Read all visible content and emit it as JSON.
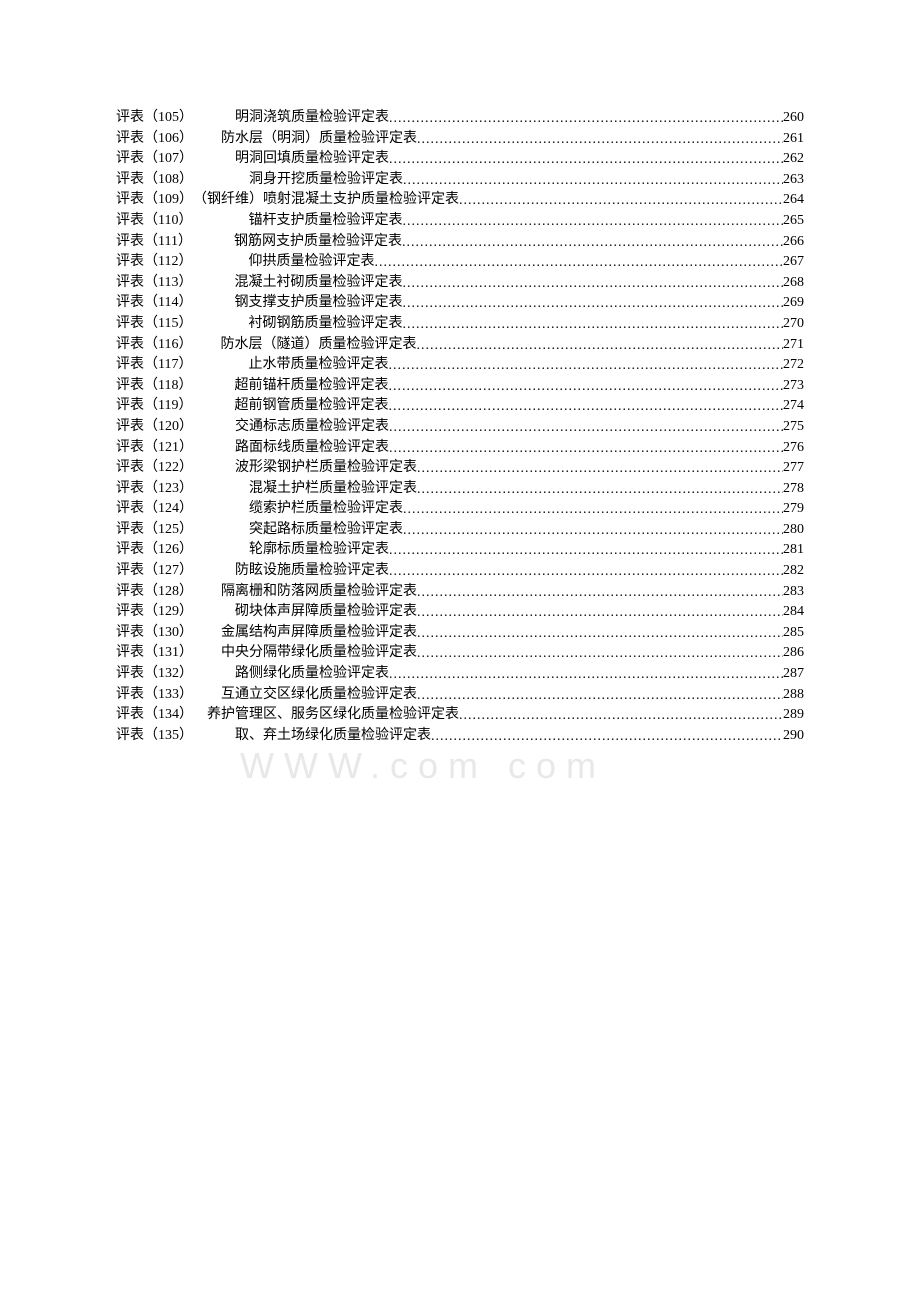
{
  "watermark": "WWW.com com",
  "entries": [
    {
      "label": "评表（105）",
      "spacer": "　　　",
      "title": "明洞浇筑质量检验评定表",
      "page": "260"
    },
    {
      "label": "评表（106）",
      "spacer": "　　",
      "title": "防水层（明洞）质量检验评定表",
      "page": "261"
    },
    {
      "label": "评表（107）",
      "spacer": "　　　",
      "title": "明洞回填质量检验评定表",
      "page": "262"
    },
    {
      "label": "评表（108）",
      "spacer": "　　　　",
      "title": "洞身开挖质量检验评定表",
      "page": "263"
    },
    {
      "label": "评表（109）",
      "spacer": "",
      "title": "（钢纤维）喷射混凝土支护质量检验评定表",
      "page": "264"
    },
    {
      "label": "评表（110）",
      "spacer": "　　　　",
      "title": "锚杆支护质量检验评定表",
      "page": "265"
    },
    {
      "label": "评表（111）",
      "spacer": "　　　",
      "title": "钢筋网支护质量检验评定表",
      "page": "266"
    },
    {
      "label": "评表（112）",
      "spacer": "　　　　",
      "title": "仰拱质量检验评定表",
      "page": "267"
    },
    {
      "label": "评表（113）",
      "spacer": "　　　",
      "title": "混凝土衬砌质量检验评定表",
      "page": "268"
    },
    {
      "label": "评表（114）",
      "spacer": "　　　",
      "title": "钢支撑支护质量检验评定表",
      "page": "269"
    },
    {
      "label": "评表（115）",
      "spacer": "　　　　",
      "title": "衬砌钢筋质量检验评定表",
      "page": "270"
    },
    {
      "label": "评表（116）",
      "spacer": "　　",
      "title": "防水层（隧道）质量检验评定表",
      "page": "271"
    },
    {
      "label": "评表（117）",
      "spacer": "　　　　",
      "title": "止水带质量检验评定表",
      "page": "272"
    },
    {
      "label": "评表（118）",
      "spacer": "　　　",
      "title": "超前锚杆质量检验评定表",
      "page": "273"
    },
    {
      "label": "评表（119）",
      "spacer": "　　　",
      "title": "超前钢管质量检验评定表",
      "page": "274"
    },
    {
      "label": "评表（120）",
      "spacer": "　　　",
      "title": "交通标志质量检验评定表",
      "page": "275"
    },
    {
      "label": "评表（121）",
      "spacer": "　　　",
      "title": "路面标线质量检验评定表",
      "page": "276"
    },
    {
      "label": "评表（122）",
      "spacer": "　　　",
      "title": "波形梁钢护栏质量检验评定表",
      "page": "277"
    },
    {
      "label": "评表（123）",
      "spacer": "　　　　",
      "title": "混凝土护栏质量检验评定表",
      "page": "278"
    },
    {
      "label": "评表（124）",
      "spacer": "　　　　",
      "title": "缆索护栏质量检验评定表",
      "page": "279"
    },
    {
      "label": "评表（125）",
      "spacer": "　　　　",
      "title": "突起路标质量检验评定表",
      "page": "280"
    },
    {
      "label": "评表（126）",
      "spacer": "　　　　",
      "title": "轮廓标质量检验评定表",
      "page": "281"
    },
    {
      "label": "评表（127）",
      "spacer": "　　　",
      "title": "防眩设施质量检验评定表",
      "page": "282"
    },
    {
      "label": "评表（128）",
      "spacer": "　　",
      "title": "隔离栅和防落网质量检验评定表",
      "page": "283"
    },
    {
      "label": "评表（129）",
      "spacer": "　　　",
      "title": "砌块体声屏障质量检验评定表",
      "page": "284"
    },
    {
      "label": "评表（130）",
      "spacer": "　　",
      "title": "金属结构声屏障质量检验评定表",
      "page": "285"
    },
    {
      "label": "评表（131）",
      "spacer": "　　",
      "title": "中央分隔带绿化质量检验评定表",
      "page": "286"
    },
    {
      "label": "评表（132）",
      "spacer": "　　　",
      "title": "路侧绿化质量检验评定表",
      "page": "287"
    },
    {
      "label": "评表（133）",
      "spacer": "　　",
      "title": "互通立交区绿化质量检验评定表",
      "page": "288"
    },
    {
      "label": "评表（134）",
      "spacer": "　",
      "title": "养护管理区、服务区绿化质量检验评定表",
      "page": "289"
    },
    {
      "label": "评表（135）",
      "spacer": "　　　",
      "title": "取、弃土场绿化质量检验评定表",
      "page": "290"
    }
  ]
}
